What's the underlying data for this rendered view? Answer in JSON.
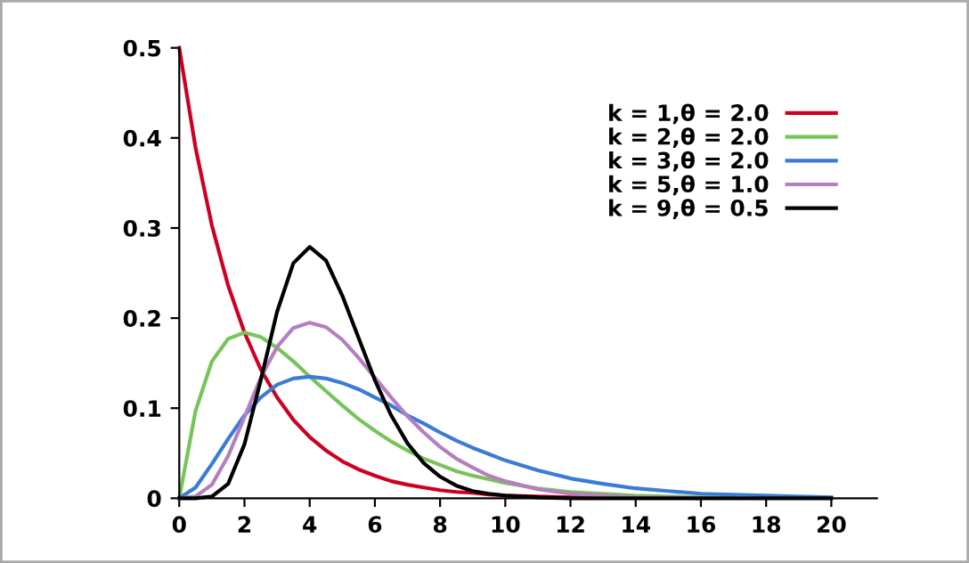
{
  "chart_data": {
    "type": "line",
    "x": [
      0,
      0.5,
      1,
      1.5,
      2,
      2.5,
      3,
      3.5,
      4,
      4.5,
      5,
      5.5,
      6,
      6.5,
      7,
      7.5,
      8,
      8.5,
      9,
      9.5,
      10,
      11,
      12,
      13,
      14,
      15,
      16,
      17,
      18,
      19,
      20
    ],
    "series": [
      {
        "name": "k = 1,θ = 2.0",
        "color": "#cc0022",
        "values": [
          0.5,
          0.389,
          0.303,
          0.236,
          0.184,
          0.143,
          0.112,
          0.087,
          0.068,
          0.053,
          0.041,
          0.032,
          0.025,
          0.019,
          0.015,
          0.012,
          0.009,
          0.007,
          0.006,
          0.004,
          0.003,
          0.002,
          0.001,
          0.001,
          null,
          null,
          null,
          null,
          null,
          null,
          null
        ]
      },
      {
        "name": "k = 2,θ = 2.0",
        "color": "#77c45a",
        "values": [
          0,
          0.097,
          0.152,
          0.177,
          0.184,
          0.179,
          0.167,
          0.152,
          0.135,
          0.119,
          0.103,
          0.088,
          0.075,
          0.063,
          0.053,
          0.044,
          0.037,
          0.03,
          0.025,
          0.021,
          0.017,
          0.011,
          0.007,
          0.005,
          0.003,
          0.002,
          0.001,
          0.001,
          null,
          null,
          null
        ]
      },
      {
        "name": "k = 3,θ = 2.0",
        "color": "#3a7bd5",
        "values": [
          0,
          0.012,
          0.038,
          0.066,
          0.092,
          0.112,
          0.126,
          0.133,
          0.135,
          0.133,
          0.128,
          0.121,
          0.112,
          0.103,
          0.092,
          0.083,
          0.073,
          0.064,
          0.056,
          0.049,
          0.042,
          0.031,
          0.022,
          0.016,
          0.011,
          0.008,
          0.005,
          0.004,
          0.003,
          0.002,
          0.001
        ]
      },
      {
        "name": "k = 5,θ = 1.0",
        "color": "#b57ec0",
        "values": [
          0,
          0.002,
          0.015,
          0.047,
          0.09,
          0.134,
          0.168,
          0.189,
          0.195,
          0.19,
          0.176,
          0.156,
          0.134,
          0.112,
          0.091,
          0.073,
          0.057,
          0.044,
          0.034,
          0.025,
          0.019,
          0.01,
          0.005,
          0.003,
          0.001,
          0.001,
          0,
          null,
          null,
          null,
          null
        ]
      },
      {
        "name": "k = 9,θ = 0.5",
        "color": "#000000",
        "values": [
          0,
          0,
          0.002,
          0.016,
          0.06,
          0.131,
          0.207,
          0.261,
          0.279,
          0.264,
          0.225,
          0.178,
          0.131,
          0.092,
          0.061,
          0.039,
          0.024,
          0.014,
          0.008,
          0.005,
          0.003,
          0.001,
          0,
          0,
          0,
          0,
          0,
          0,
          0,
          0,
          0
        ]
      }
    ],
    "xlim": [
      0,
      21.4
    ],
    "ylim": [
      0,
      0.5
    ],
    "xticks": [
      0,
      2,
      4,
      6,
      8,
      10,
      12,
      14,
      16,
      18,
      20
    ],
    "yticks": [
      0,
      0.1,
      0.2,
      0.3,
      0.4,
      0.5
    ],
    "grid": false,
    "legend": "top right",
    "marker": "none",
    "line_style": "solid"
  }
}
